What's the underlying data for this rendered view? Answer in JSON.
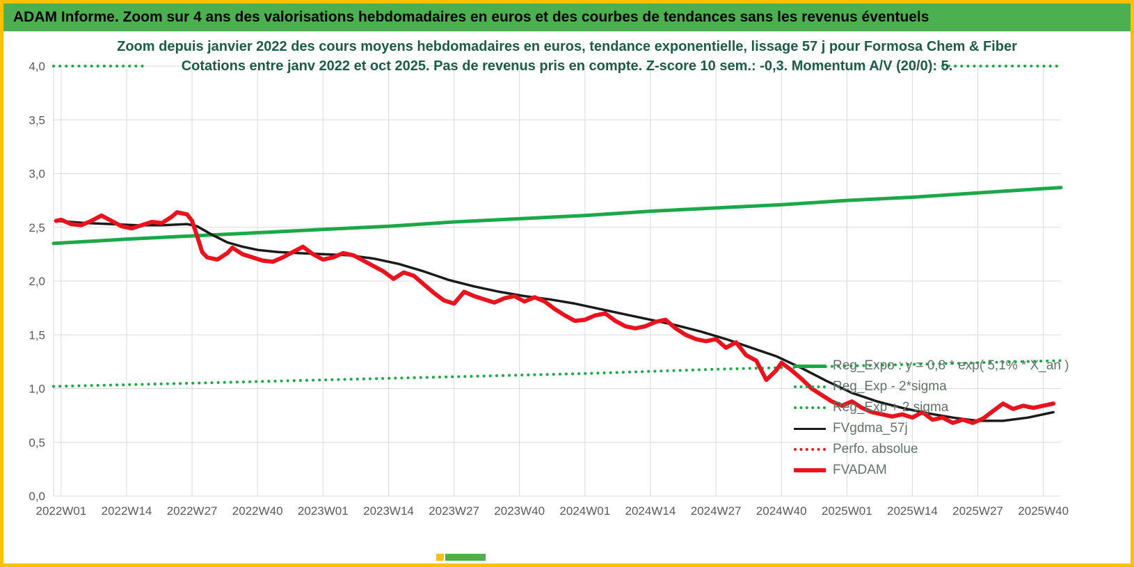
{
  "window": {
    "header_title": "ADAM Informe. Zoom sur 4 ans des valorisations hebdomadaires en euros et des courbes de tendances sans les revenus éventuels"
  },
  "chart_data": {
    "type": "line",
    "title_line1": "Zoom depuis janvier 2022 des cours moyens hebdomadaires en euros, tendance exponentielle, lissage 57 j pour Formosa Chem & Fiber",
    "title_line2": "Cotations entre janv 2022 et oct 2025. Pas de revenus pris en compte. Z-score 10 sem.: -0,3.  Momentum A/V (20/0): 5.",
    "grid": true,
    "legend_position": "inside-right",
    "ylim": [
      0,
      4
    ],
    "y_ticks": [
      0,
      0.5,
      1,
      1.5,
      2,
      2.5,
      3,
      3.5,
      4
    ],
    "y_tick_labels": [
      "0,0",
      "0,5",
      "1,0",
      "1,5",
      "2,0",
      "2,5",
      "3,0",
      "3,5",
      "4,0"
    ],
    "x_tick_weeks": [
      0,
      13,
      26,
      39,
      52,
      65,
      78,
      91,
      104,
      117,
      130,
      143,
      156,
      169,
      182,
      195
    ],
    "x_tick_labels": [
      "2022W01",
      "2022W14",
      "2022W27",
      "2022W40",
      "2023W01",
      "2023W14",
      "2023W27",
      "2023W40",
      "2024W01",
      "2024W14",
      "2024W27",
      "2024W40",
      "2025W01",
      "2025W14",
      "2025W27",
      "2025W40"
    ],
    "colors": {
      "frame": "#ffc000",
      "header_bg": "#4caf50",
      "green": "#1ca849",
      "red": "#e8131d",
      "black": "#1a1a1a",
      "grid": "#d9d9d9",
      "axis_text": "#595959",
      "title_text": "#1d5c44",
      "legend_text": "#5f7468"
    },
    "legend": [
      {
        "label": "Reg_Expo : y = 0,8 * exp( 5,1% * X_an )",
        "swatch": "green-solid"
      },
      {
        "label": "Reg_Exp - 2*sigma",
        "swatch": "green-dotted"
      },
      {
        "label": "Reg_Exp + 2 sigma",
        "swatch": "green-dotted"
      },
      {
        "label": "FVgdma_57j",
        "swatch": "black-solid"
      },
      {
        "label": "Perfo. absolue",
        "swatch": "red-dotted"
      },
      {
        "label": "FVADAM",
        "swatch": "red-solid"
      }
    ],
    "series": [
      {
        "id": "reg-exp-plus-2sigma-left",
        "name": "Reg_Exp + 2 sigma (clipped left)",
        "color": "green",
        "dash": "dotted",
        "width": 4,
        "points": [
          [
            -1.5,
            4.0
          ],
          [
            17,
            4.0
          ]
        ]
      },
      {
        "id": "reg-exp-plus-2sigma-right",
        "name": "Reg_Exp + 2 sigma (clipped right)",
        "color": "green",
        "dash": "dotted",
        "width": 4,
        "points": [
          [
            175,
            4.0
          ],
          [
            198.5,
            4.0
          ]
        ]
      },
      {
        "id": "reg-exp-minus-2sigma",
        "name": "Reg_Exp - 2*sigma",
        "color": "green",
        "dash": "dotted",
        "width": 4,
        "points": [
          [
            -1.5,
            1.02
          ],
          [
            26,
            1.05
          ],
          [
            52,
            1.08
          ],
          [
            78,
            1.11
          ],
          [
            104,
            1.14
          ],
          [
            130,
            1.18
          ],
          [
            156,
            1.21
          ],
          [
            182,
            1.24
          ],
          [
            198.5,
            1.26
          ]
        ]
      },
      {
        "id": "reg-expo",
        "name": "Reg_Expo",
        "color": "green",
        "dash": "solid",
        "width": 5,
        "points": [
          [
            -1.5,
            2.35
          ],
          [
            13,
            2.39
          ],
          [
            26,
            2.42
          ],
          [
            39,
            2.45
          ],
          [
            52,
            2.48
          ],
          [
            65,
            2.51
          ],
          [
            78,
            2.55
          ],
          [
            91,
            2.58
          ],
          [
            104,
            2.61
          ],
          [
            117,
            2.65
          ],
          [
            130,
            2.68
          ],
          [
            143,
            2.71
          ],
          [
            156,
            2.75
          ],
          [
            169,
            2.78
          ],
          [
            182,
            2.82
          ],
          [
            195,
            2.86
          ],
          [
            198.5,
            2.87
          ]
        ]
      },
      {
        "id": "fvgdma-57j",
        "name": "FVgdma_57j",
        "color": "black",
        "dash": "solid",
        "width": 3.5,
        "points": [
          [
            -1,
            2.56
          ],
          [
            5,
            2.54
          ],
          [
            10,
            2.53
          ],
          [
            15,
            2.52
          ],
          [
            20,
            2.52
          ],
          [
            25,
            2.53
          ],
          [
            27,
            2.51
          ],
          [
            30,
            2.43
          ],
          [
            33,
            2.36
          ],
          [
            36,
            2.32
          ],
          [
            39,
            2.29
          ],
          [
            43,
            2.27
          ],
          [
            47,
            2.26
          ],
          [
            52,
            2.25
          ],
          [
            57,
            2.24
          ],
          [
            62,
            2.21
          ],
          [
            67,
            2.16
          ],
          [
            72,
            2.09
          ],
          [
            77,
            2.01
          ],
          [
            82,
            1.95
          ],
          [
            87,
            1.9
          ],
          [
            92,
            1.86
          ],
          [
            97,
            1.83
          ],
          [
            102,
            1.79
          ],
          [
            107,
            1.74
          ],
          [
            112,
            1.69
          ],
          [
            117,
            1.64
          ],
          [
            122,
            1.59
          ],
          [
            127,
            1.53
          ],
          [
            132,
            1.46
          ],
          [
            137,
            1.38
          ],
          [
            142,
            1.3
          ],
          [
            147,
            1.19
          ],
          [
            152,
            1.07
          ],
          [
            157,
            0.96
          ],
          [
            162,
            0.88
          ],
          [
            167,
            0.82
          ],
          [
            172,
            0.77
          ],
          [
            177,
            0.73
          ],
          [
            182,
            0.7
          ],
          [
            187,
            0.7
          ],
          [
            192,
            0.73
          ],
          [
            197,
            0.78
          ]
        ]
      },
      {
        "id": "perfo-absolue",
        "name": "Perfo. absolue",
        "color": "red",
        "dash": "dotted",
        "width": 3,
        "points_ref": "FVADAM"
      },
      {
        "id": "fvadam",
        "name": "FVADAM",
        "color": "red",
        "dash": "solid",
        "width": 6,
        "points": [
          [
            -1,
            2.56
          ],
          [
            0,
            2.57
          ],
          [
            2,
            2.53
          ],
          [
            4,
            2.52
          ],
          [
            6,
            2.56
          ],
          [
            8,
            2.61
          ],
          [
            10,
            2.56
          ],
          [
            12,
            2.51
          ],
          [
            14,
            2.49
          ],
          [
            16,
            2.52
          ],
          [
            18,
            2.55
          ],
          [
            20,
            2.54
          ],
          [
            22,
            2.6
          ],
          [
            23,
            2.64
          ],
          [
            25,
            2.62
          ],
          [
            26,
            2.56
          ],
          [
            27,
            2.42
          ],
          [
            28,
            2.27
          ],
          [
            29,
            2.22
          ],
          [
            31,
            2.2
          ],
          [
            33,
            2.26
          ],
          [
            34,
            2.31
          ],
          [
            36,
            2.25
          ],
          [
            38,
            2.22
          ],
          [
            40,
            2.19
          ],
          [
            42,
            2.18
          ],
          [
            44,
            2.22
          ],
          [
            46,
            2.27
          ],
          [
            48,
            2.32
          ],
          [
            50,
            2.25
          ],
          [
            52,
            2.2
          ],
          [
            54,
            2.22
          ],
          [
            56,
            2.26
          ],
          [
            58,
            2.24
          ],
          [
            60,
            2.19
          ],
          [
            62,
            2.14
          ],
          [
            64,
            2.09
          ],
          [
            66,
            2.02
          ],
          [
            68,
            2.08
          ],
          [
            70,
            2.05
          ],
          [
            72,
            1.97
          ],
          [
            74,
            1.89
          ],
          [
            76,
            1.82
          ],
          [
            78,
            1.79
          ],
          [
            80,
            1.9
          ],
          [
            82,
            1.86
          ],
          [
            84,
            1.83
          ],
          [
            86,
            1.8
          ],
          [
            88,
            1.84
          ],
          [
            90,
            1.86
          ],
          [
            92,
            1.81
          ],
          [
            94,
            1.85
          ],
          [
            96,
            1.81
          ],
          [
            98,
            1.74
          ],
          [
            100,
            1.68
          ],
          [
            102,
            1.63
          ],
          [
            104,
            1.64
          ],
          [
            106,
            1.68
          ],
          [
            108,
            1.7
          ],
          [
            110,
            1.63
          ],
          [
            112,
            1.58
          ],
          [
            114,
            1.56
          ],
          [
            116,
            1.58
          ],
          [
            118,
            1.62
          ],
          [
            120,
            1.64
          ],
          [
            122,
            1.56
          ],
          [
            124,
            1.5
          ],
          [
            126,
            1.46
          ],
          [
            128,
            1.44
          ],
          [
            130,
            1.46
          ],
          [
            132,
            1.38
          ],
          [
            134,
            1.43
          ],
          [
            136,
            1.31
          ],
          [
            138,
            1.26
          ],
          [
            140,
            1.08
          ],
          [
            142,
            1.17
          ],
          [
            143,
            1.24
          ],
          [
            145,
            1.17
          ],
          [
            147,
            1.09
          ],
          [
            149,
            1.0
          ],
          [
            151,
            0.94
          ],
          [
            153,
            0.88
          ],
          [
            155,
            0.84
          ],
          [
            157,
            0.88
          ],
          [
            159,
            0.82
          ],
          [
            161,
            0.78
          ],
          [
            163,
            0.76
          ],
          [
            165,
            0.74
          ],
          [
            167,
            0.76
          ],
          [
            169,
            0.73
          ],
          [
            171,
            0.78
          ],
          [
            173,
            0.71
          ],
          [
            175,
            0.73
          ],
          [
            177,
            0.68
          ],
          [
            179,
            0.71
          ],
          [
            181,
            0.68
          ],
          [
            183,
            0.72
          ],
          [
            185,
            0.79
          ],
          [
            187,
            0.86
          ],
          [
            189,
            0.81
          ],
          [
            191,
            0.84
          ],
          [
            193,
            0.82
          ],
          [
            195,
            0.84
          ],
          [
            197,
            0.86
          ]
        ]
      }
    ]
  }
}
